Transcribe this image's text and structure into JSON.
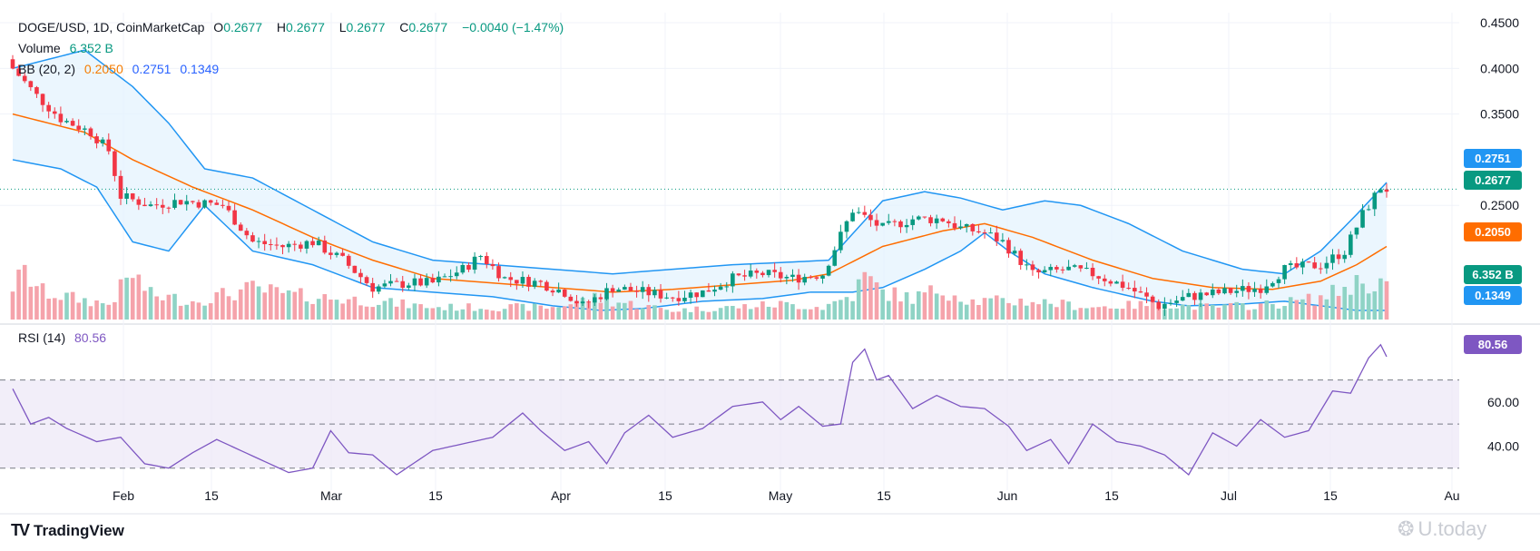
{
  "legend": {
    "symbol": "DOGE/USD, 1D, CoinMarketCap",
    "o_label": "O",
    "o_value": "0.2677",
    "h_label": "H",
    "h_value": "0.2677",
    "l_label": "L",
    "l_value": "0.2677",
    "c_label": "C",
    "c_value": "0.2677",
    "change": "−0.0040 (−1.47%)",
    "volume_label": "Volume",
    "volume_value": "6.352 B",
    "bb_label": "BB (20, 2)",
    "bb_basis": "0.2050",
    "bb_upper": "0.2751",
    "bb_lower": "0.1349",
    "rsi_label": "RSI (14)",
    "rsi_value": "80.56"
  },
  "badges": {
    "bb_upper": "0.2751",
    "price": "0.2677",
    "bb_basis": "0.2050",
    "volume": "6.352 B",
    "bb_lower": "0.1349",
    "rsi": "80.56"
  },
  "colors": {
    "up": "#089981",
    "down": "#f23645",
    "up_volume": "#8fd3c5",
    "down_volume": "#f5a3ab",
    "bb_band": "#2196f3",
    "bb_fill": "#e3f2fd",
    "bb_basis": "#ff6d00",
    "rsi_line": "#7e57c2",
    "rsi_fill": "#ede7f6"
  },
  "brand": {
    "name": "TradingView",
    "logo": "TV"
  },
  "watermark": {
    "text": "U.today"
  },
  "chart_data": {
    "type": "candlestick",
    "title": "DOGE/USD, 1D, CoinMarketCap",
    "price_axis": {
      "ticks": [
        "0.4500",
        "0.4000",
        "0.3500",
        "0.2500"
      ],
      "range": [
        0.125,
        0.455
      ]
    },
    "rsi_axis": {
      "ticks": [
        "60.00",
        "40.00"
      ],
      "levels": [
        70,
        50,
        30
      ],
      "range": [
        20,
        90
      ]
    },
    "x_labels": [
      "Feb",
      "15",
      "Mar",
      "15",
      "Apr",
      "15",
      "May",
      "15",
      "Jun",
      "15",
      "Jul",
      "15",
      "Au"
    ],
    "current_price": 0.2677,
    "waypoints": {
      "close": [
        [
          0,
          0.4
        ],
        [
          4,
          0.37
        ],
        [
          8,
          0.345
        ],
        [
          13,
          0.33
        ],
        [
          16,
          0.31
        ],
        [
          18,
          0.26
        ],
        [
          23,
          0.25
        ],
        [
          28,
          0.255
        ],
        [
          35,
          0.25
        ],
        [
          40,
          0.21
        ],
        [
          45,
          0.205
        ],
        [
          50,
          0.21
        ],
        [
          55,
          0.19
        ],
        [
          60,
          0.16
        ],
        [
          66,
          0.165
        ],
        [
          70,
          0.165
        ],
        [
          75,
          0.18
        ],
        [
          78,
          0.195
        ],
        [
          82,
          0.17
        ],
        [
          88,
          0.165
        ],
        [
          92,
          0.155
        ],
        [
          95,
          0.14
        ],
        [
          100,
          0.16
        ],
        [
          105,
          0.155
        ],
        [
          110,
          0.15
        ],
        [
          115,
          0.155
        ],
        [
          120,
          0.17
        ],
        [
          125,
          0.175
        ],
        [
          130,
          0.17
        ],
        [
          135,
          0.175
        ],
        [
          140,
          0.245
        ],
        [
          145,
          0.225
        ],
        [
          150,
          0.235
        ],
        [
          155,
          0.235
        ],
        [
          158,
          0.225
        ],
        [
          162,
          0.22
        ],
        [
          165,
          0.21
        ],
        [
          170,
          0.175
        ],
        [
          176,
          0.18
        ],
        [
          180,
          0.175
        ],
        [
          186,
          0.16
        ],
        [
          191,
          0.14
        ],
        [
          196,
          0.15
        ],
        [
          202,
          0.155
        ],
        [
          208,
          0.16
        ],
        [
          212,
          0.18
        ],
        [
          218,
          0.185
        ],
        [
          222,
          0.2
        ],
        [
          225,
          0.24
        ],
        [
          228,
          0.27
        ],
        [
          229,
          0.2677
        ]
      ],
      "bb_basis": [
        [
          0,
          0.35
        ],
        [
          12,
          0.33
        ],
        [
          20,
          0.3
        ],
        [
          30,
          0.27
        ],
        [
          40,
          0.245
        ],
        [
          50,
          0.215
        ],
        [
          60,
          0.19
        ],
        [
          70,
          0.17
        ],
        [
          80,
          0.165
        ],
        [
          90,
          0.16
        ],
        [
          100,
          0.155
        ],
        [
          110,
          0.158
        ],
        [
          120,
          0.163
        ],
        [
          130,
          0.168
        ],
        [
          136,
          0.175
        ],
        [
          145,
          0.205
        ],
        [
          155,
          0.222
        ],
        [
          162,
          0.23
        ],
        [
          170,
          0.215
        ],
        [
          180,
          0.19
        ],
        [
          190,
          0.17
        ],
        [
          200,
          0.16
        ],
        [
          210,
          0.158
        ],
        [
          218,
          0.167
        ],
        [
          224,
          0.185
        ],
        [
          229,
          0.205
        ]
      ],
      "bb_upper": [
        [
          0,
          0.4
        ],
        [
          12,
          0.42
        ],
        [
          20,
          0.38
        ],
        [
          26,
          0.34
        ],
        [
          32,
          0.29
        ],
        [
          40,
          0.28
        ],
        [
          50,
          0.245
        ],
        [
          60,
          0.21
        ],
        [
          70,
          0.19
        ],
        [
          80,
          0.185
        ],
        [
          90,
          0.18
        ],
        [
          100,
          0.175
        ],
        [
          110,
          0.18
        ],
        [
          120,
          0.185
        ],
        [
          130,
          0.188
        ],
        [
          136,
          0.19
        ],
        [
          145,
          0.255
        ],
        [
          152,
          0.265
        ],
        [
          158,
          0.258
        ],
        [
          165,
          0.245
        ],
        [
          172,
          0.255
        ],
        [
          178,
          0.25
        ],
        [
          186,
          0.23
        ],
        [
          195,
          0.2
        ],
        [
          205,
          0.18
        ],
        [
          212,
          0.175
        ],
        [
          218,
          0.2
        ],
        [
          224,
          0.24
        ],
        [
          229,
          0.2751
        ]
      ],
      "bb_lower": [
        [
          0,
          0.3
        ],
        [
          8,
          0.29
        ],
        [
          14,
          0.27
        ],
        [
          20,
          0.21
        ],
        [
          26,
          0.2
        ],
        [
          32,
          0.25
        ],
        [
          40,
          0.2
        ],
        [
          50,
          0.185
        ],
        [
          60,
          0.16
        ],
        [
          70,
          0.155
        ],
        [
          80,
          0.15
        ],
        [
          90,
          0.14
        ],
        [
          98,
          0.135
        ],
        [
          105,
          0.137
        ],
        [
          115,
          0.145
        ],
        [
          125,
          0.148
        ],
        [
          133,
          0.155
        ],
        [
          140,
          0.155
        ],
        [
          145,
          0.16
        ],
        [
          152,
          0.18
        ],
        [
          158,
          0.2
        ],
        [
          162,
          0.22
        ],
        [
          166,
          0.2
        ],
        [
          172,
          0.175
        ],
        [
          180,
          0.16
        ],
        [
          190,
          0.145
        ],
        [
          196,
          0.14
        ],
        [
          205,
          0.142
        ],
        [
          212,
          0.145
        ],
        [
          218,
          0.14
        ],
        [
          224,
          0.135
        ],
        [
          229,
          0.1349
        ]
      ],
      "volume": [
        [
          0,
          0.55
        ],
        [
          2,
          0.75
        ],
        [
          5,
          0.45
        ],
        [
          10,
          0.35
        ],
        [
          16,
          0.25
        ],
        [
          20,
          0.75
        ],
        [
          23,
          0.4
        ],
        [
          30,
          0.3
        ],
        [
          40,
          0.5
        ],
        [
          46,
          0.4
        ],
        [
          53,
          0.35
        ],
        [
          60,
          0.3
        ],
        [
          70,
          0.2
        ],
        [
          80,
          0.2
        ],
        [
          90,
          0.2
        ],
        [
          97,
          0.35
        ],
        [
          100,
          0.3
        ],
        [
          110,
          0.15
        ],
        [
          120,
          0.2
        ],
        [
          128,
          0.25
        ],
        [
          135,
          0.2
        ],
        [
          140,
          0.4
        ],
        [
          142,
          0.7
        ],
        [
          145,
          0.45
        ],
        [
          150,
          0.35
        ],
        [
          155,
          0.5
        ],
        [
          160,
          0.3
        ],
        [
          170,
          0.3
        ],
        [
          180,
          0.2
        ],
        [
          190,
          0.25
        ],
        [
          200,
          0.2
        ],
        [
          210,
          0.25
        ],
        [
          218,
          0.35
        ],
        [
          224,
          0.6
        ],
        [
          229,
          0.6
        ]
      ],
      "rsi": [
        [
          0,
          66
        ],
        [
          3,
          50
        ],
        [
          6,
          53
        ],
        [
          9,
          48
        ],
        [
          14,
          42
        ],
        [
          18,
          44
        ],
        [
          22,
          32
        ],
        [
          26,
          30
        ],
        [
          30,
          37
        ],
        [
          34,
          43
        ],
        [
          38,
          38
        ],
        [
          42,
          33
        ],
        [
          46,
          28
        ],
        [
          50,
          30
        ],
        [
          53,
          47
        ],
        [
          56,
          37
        ],
        [
          60,
          36
        ],
        [
          64,
          27
        ],
        [
          70,
          38
        ],
        [
          75,
          41
        ],
        [
          80,
          44
        ],
        [
          85,
          55
        ],
        [
          88,
          47
        ],
        [
          92,
          38
        ],
        [
          96,
          42
        ],
        [
          99,
          32
        ],
        [
          102,
          46
        ],
        [
          106,
          54
        ],
        [
          110,
          44
        ],
        [
          115,
          48
        ],
        [
          120,
          58
        ],
        [
          125,
          60
        ],
        [
          128,
          52
        ],
        [
          131,
          58
        ],
        [
          135,
          49
        ],
        [
          138,
          50
        ],
        [
          140,
          78
        ],
        [
          142,
          84
        ],
        [
          144,
          70
        ],
        [
          146,
          72
        ],
        [
          150,
          57
        ],
        [
          154,
          63
        ],
        [
          158,
          58
        ],
        [
          162,
          57
        ],
        [
          166,
          49
        ],
        [
          169,
          38
        ],
        [
          173,
          43
        ],
        [
          176,
          32
        ],
        [
          180,
          50
        ],
        [
          184,
          42
        ],
        [
          188,
          40
        ],
        [
          192,
          36
        ],
        [
          196,
          27
        ],
        [
          200,
          46
        ],
        [
          204,
          40
        ],
        [
          208,
          52
        ],
        [
          212,
          44
        ],
        [
          216,
          47
        ],
        [
          220,
          65
        ],
        [
          223,
          64
        ],
        [
          226,
          80
        ],
        [
          228,
          86
        ],
        [
          229,
          80.56
        ]
      ]
    }
  }
}
